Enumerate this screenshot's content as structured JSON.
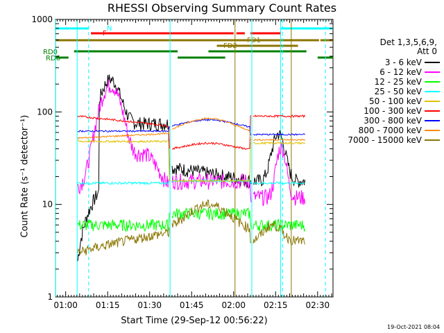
{
  "chart_data": {
    "type": "line",
    "title": "RHESSI Observing Summary Count Rates",
    "xlabel": "Start Time (29-Sep-12 00:56:22)",
    "ylabel": "Count Rate (s⁻¹ detector⁻¹)",
    "yscale": "log",
    "ylim": [
      1,
      1000
    ],
    "xlim_minutes": [
      56.37,
      155.5
    ],
    "x_ticks": [
      "01:00",
      "01:15",
      "01:30",
      "01:45",
      "02:00",
      "02:15",
      "02:30"
    ],
    "y_ticks": [
      "1",
      "10",
      "100",
      "1000"
    ],
    "legend_title": [
      "Det 1,3,5,6,9,",
      "Att 0"
    ],
    "series": [
      {
        "name": "3 - 6 keV",
        "color": "#000000"
      },
      {
        "name": "6 - 12 keV",
        "color": "#ff00ff"
      },
      {
        "name": "12 - 25 keV",
        "color": "#00ff00"
      },
      {
        "name": "25 - 50 keV",
        "color": "#00ffff"
      },
      {
        "name": "50 - 100 keV",
        "color": "#e0c000"
      },
      {
        "name": "100 - 300 keV",
        "color": "#ff0000"
      },
      {
        "name": "300 - 800 keV",
        "color": "#0000ff"
      },
      {
        "name": "800 - 7000 keV",
        "color": "#ff8800"
      },
      {
        "name": "7000 - 15000 keV",
        "color": "#8b7500"
      }
    ],
    "flags": [
      {
        "label": "N",
        "color": "#00ffff"
      },
      {
        "label": "F",
        "color": "#ff0000"
      },
      {
        "label": "FD1",
        "color": "#8b7500"
      },
      {
        "label": "FD2",
        "color": "#8b7500"
      },
      {
        "label": "RD0",
        "color": "#008000"
      },
      {
        "label": "RD6",
        "color": "#008000"
      }
    ]
  },
  "stamp": "19-Oct-2021 08:04"
}
